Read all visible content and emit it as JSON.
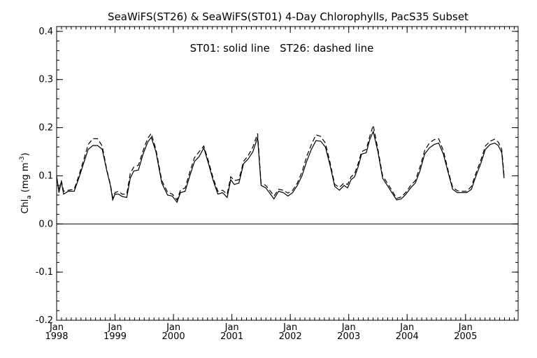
{
  "chart_data": {
    "type": "line",
    "title": "SeaWiFS(ST26) & SeaWiFS(ST01) 4-Day Chlorophylls, PacS35 Subset",
    "annotation": "ST01: solid line   ST26: dashed line",
    "ylabel": "Chl",
    "ylabel_subscript": "a",
    "ylabel_units": "(mg m",
    "ylabel_units_sup": "-3",
    "ylabel_units_close": ")",
    "ylim": [
      -0.2,
      0.41
    ],
    "yticks": [
      -0.2,
      -0.1,
      0.0,
      0.1,
      0.2,
      0.3,
      0.4
    ],
    "ytick_labels": [
      "-0.2",
      "-0.1",
      "0.0",
      "0.1",
      "0.2",
      "0.3",
      "0.4"
    ],
    "xlim": [
      1998.0,
      2005.9
    ],
    "xticks": [
      {
        "x": 1998,
        "month": "Jan",
        "year": "1998"
      },
      {
        "x": 1999,
        "month": "Jan",
        "year": "1999"
      },
      {
        "x": 2000,
        "month": "Jan",
        "year": "2000"
      },
      {
        "x": 2001,
        "month": "Jan",
        "year": "2001"
      },
      {
        "x": 2002,
        "month": "Jan",
        "year": "2002"
      },
      {
        "x": 2003,
        "month": "Jan",
        "year": "2003"
      },
      {
        "x": 2004,
        "month": "Jan",
        "year": "2004"
      },
      {
        "x": 2005,
        "month": "Jan",
        "year": "2005"
      }
    ],
    "zero_line": 0.0,
    "series": [
      {
        "name": "ST01",
        "style": "solid",
        "color": "#000000",
        "points": [
          [
            1998.0,
            0.1
          ],
          [
            1998.04,
            0.065
          ],
          [
            1998.08,
            0.088
          ],
          [
            1998.12,
            0.062
          ],
          [
            1998.2,
            0.068
          ],
          [
            1998.3,
            0.068
          ],
          [
            1998.38,
            0.095
          ],
          [
            1998.46,
            0.125
          ],
          [
            1998.54,
            0.155
          ],
          [
            1998.62,
            0.163
          ],
          [
            1998.7,
            0.163
          ],
          [
            1998.78,
            0.155
          ],
          [
            1998.86,
            0.11
          ],
          [
            1998.92,
            0.08
          ],
          [
            1998.96,
            0.05
          ],
          [
            1999.0,
            0.062
          ],
          [
            1999.06,
            0.062
          ],
          [
            1999.12,
            0.057
          ],
          [
            1999.2,
            0.055
          ],
          [
            1999.26,
            0.095
          ],
          [
            1999.32,
            0.11
          ],
          [
            1999.4,
            0.112
          ],
          [
            1999.48,
            0.145
          ],
          [
            1999.56,
            0.17
          ],
          [
            1999.62,
            0.18
          ],
          [
            1999.7,
            0.15
          ],
          [
            1999.8,
            0.085
          ],
          [
            1999.9,
            0.06
          ],
          [
            1999.98,
            0.058
          ],
          [
            2000.06,
            0.045
          ],
          [
            2000.12,
            0.065
          ],
          [
            2000.2,
            0.068
          ],
          [
            2000.28,
            0.1
          ],
          [
            2000.36,
            0.13
          ],
          [
            2000.44,
            0.14
          ],
          [
            2000.52,
            0.158
          ],
          [
            2000.6,
            0.125
          ],
          [
            2000.68,
            0.09
          ],
          [
            2000.76,
            0.062
          ],
          [
            2000.84,
            0.065
          ],
          [
            2000.92,
            0.055
          ],
          [
            2000.98,
            0.092
          ],
          [
            2001.04,
            0.082
          ],
          [
            2001.12,
            0.085
          ],
          [
            2001.2,
            0.125
          ],
          [
            2001.28,
            0.135
          ],
          [
            2001.36,
            0.15
          ],
          [
            2001.44,
            0.18
          ],
          [
            2001.5,
            0.08
          ],
          [
            2001.58,
            0.075
          ],
          [
            2001.66,
            0.062
          ],
          [
            2001.72,
            0.052
          ],
          [
            2001.8,
            0.068
          ],
          [
            2001.88,
            0.065
          ],
          [
            2001.96,
            0.058
          ],
          [
            2002.04,
            0.065
          ],
          [
            2002.12,
            0.08
          ],
          [
            2002.2,
            0.1
          ],
          [
            2002.28,
            0.13
          ],
          [
            2002.36,
            0.155
          ],
          [
            2002.44,
            0.173
          ],
          [
            2002.52,
            0.172
          ],
          [
            2002.6,
            0.16
          ],
          [
            2002.68,
            0.122
          ],
          [
            2002.76,
            0.078
          ],
          [
            2002.84,
            0.07
          ],
          [
            2002.92,
            0.08
          ],
          [
            2002.98,
            0.075
          ],
          [
            2003.04,
            0.092
          ],
          [
            2003.1,
            0.098
          ],
          [
            2003.16,
            0.118
          ],
          [
            2003.22,
            0.145
          ],
          [
            2003.3,
            0.148
          ],
          [
            2003.36,
            0.175
          ],
          [
            2003.42,
            0.192
          ],
          [
            2003.5,
            0.15
          ],
          [
            2003.58,
            0.095
          ],
          [
            2003.66,
            0.08
          ],
          [
            2003.74,
            0.065
          ],
          [
            2003.82,
            0.05
          ],
          [
            2003.9,
            0.052
          ],
          [
            2003.98,
            0.062
          ],
          [
            2004.06,
            0.075
          ],
          [
            2004.14,
            0.085
          ],
          [
            2004.22,
            0.11
          ],
          [
            2004.3,
            0.145
          ],
          [
            2004.38,
            0.158
          ],
          [
            2004.46,
            0.165
          ],
          [
            2004.54,
            0.168
          ],
          [
            2004.62,
            0.145
          ],
          [
            2004.7,
            0.108
          ],
          [
            2004.78,
            0.072
          ],
          [
            2004.86,
            0.065
          ],
          [
            2004.94,
            0.065
          ],
          [
            2005.02,
            0.065
          ],
          [
            2005.1,
            0.072
          ],
          [
            2005.18,
            0.1
          ],
          [
            2005.26,
            0.125
          ],
          [
            2005.34,
            0.155
          ],
          [
            2005.42,
            0.165
          ],
          [
            2005.5,
            0.168
          ],
          [
            2005.56,
            0.163
          ],
          [
            2005.62,
            0.148
          ],
          [
            2005.66,
            0.095
          ]
        ]
      },
      {
        "name": "ST26",
        "style": "dashed",
        "color": "#000000",
        "points": [
          [
            1998.0,
            0.098
          ],
          [
            1998.04,
            0.07
          ],
          [
            1998.08,
            0.09
          ],
          [
            1998.12,
            0.068
          ],
          [
            1998.2,
            0.07
          ],
          [
            1998.3,
            0.072
          ],
          [
            1998.38,
            0.1
          ],
          [
            1998.46,
            0.132
          ],
          [
            1998.54,
            0.165
          ],
          [
            1998.62,
            0.177
          ],
          [
            1998.7,
            0.177
          ],
          [
            1998.78,
            0.162
          ],
          [
            1998.86,
            0.112
          ],
          [
            1998.92,
            0.082
          ],
          [
            1998.96,
            0.055
          ],
          [
            1999.0,
            0.065
          ],
          [
            1999.06,
            0.068
          ],
          [
            1999.12,
            0.062
          ],
          [
            1999.2,
            0.062
          ],
          [
            1999.26,
            0.105
          ],
          [
            1999.32,
            0.118
          ],
          [
            1999.4,
            0.122
          ],
          [
            1999.48,
            0.152
          ],
          [
            1999.56,
            0.178
          ],
          [
            1999.62,
            0.188
          ],
          [
            1999.7,
            0.155
          ],
          [
            1999.8,
            0.09
          ],
          [
            1999.9,
            0.066
          ],
          [
            1999.98,
            0.062
          ],
          [
            2000.06,
            0.05
          ],
          [
            2000.12,
            0.07
          ],
          [
            2000.2,
            0.075
          ],
          [
            2000.28,
            0.108
          ],
          [
            2000.36,
            0.138
          ],
          [
            2000.44,
            0.15
          ],
          [
            2000.52,
            0.162
          ],
          [
            2000.6,
            0.13
          ],
          [
            2000.68,
            0.095
          ],
          [
            2000.76,
            0.068
          ],
          [
            2000.84,
            0.07
          ],
          [
            2000.92,
            0.062
          ],
          [
            2000.98,
            0.098
          ],
          [
            2001.04,
            0.09
          ],
          [
            2001.12,
            0.092
          ],
          [
            2001.2,
            0.13
          ],
          [
            2001.28,
            0.142
          ],
          [
            2001.36,
            0.16
          ],
          [
            2001.44,
            0.188
          ],
          [
            2001.5,
            0.085
          ],
          [
            2001.58,
            0.08
          ],
          [
            2001.66,
            0.068
          ],
          [
            2001.72,
            0.058
          ],
          [
            2001.8,
            0.072
          ],
          [
            2001.88,
            0.07
          ],
          [
            2001.96,
            0.064
          ],
          [
            2002.04,
            0.07
          ],
          [
            2002.12,
            0.085
          ],
          [
            2002.2,
            0.108
          ],
          [
            2002.28,
            0.14
          ],
          [
            2002.36,
            0.165
          ],
          [
            2002.44,
            0.185
          ],
          [
            2002.52,
            0.182
          ],
          [
            2002.6,
            0.168
          ],
          [
            2002.68,
            0.128
          ],
          [
            2002.76,
            0.082
          ],
          [
            2002.84,
            0.076
          ],
          [
            2002.92,
            0.085
          ],
          [
            2002.98,
            0.082
          ],
          [
            2003.04,
            0.098
          ],
          [
            2003.1,
            0.104
          ],
          [
            2003.16,
            0.125
          ],
          [
            2003.22,
            0.15
          ],
          [
            2003.3,
            0.155
          ],
          [
            2003.36,
            0.182
          ],
          [
            2003.42,
            0.205
          ],
          [
            2003.5,
            0.155
          ],
          [
            2003.58,
            0.1
          ],
          [
            2003.66,
            0.085
          ],
          [
            2003.74,
            0.07
          ],
          [
            2003.82,
            0.053
          ],
          [
            2003.9,
            0.056
          ],
          [
            2003.98,
            0.066
          ],
          [
            2004.06,
            0.08
          ],
          [
            2004.14,
            0.09
          ],
          [
            2004.22,
            0.118
          ],
          [
            2004.3,
            0.152
          ],
          [
            2004.38,
            0.168
          ],
          [
            2004.46,
            0.175
          ],
          [
            2004.54,
            0.177
          ],
          [
            2004.62,
            0.152
          ],
          [
            2004.7,
            0.112
          ],
          [
            2004.78,
            0.076
          ],
          [
            2004.86,
            0.069
          ],
          [
            2004.94,
            0.068
          ],
          [
            2005.02,
            0.068
          ],
          [
            2005.1,
            0.078
          ],
          [
            2005.18,
            0.106
          ],
          [
            2005.26,
            0.132
          ],
          [
            2005.34,
            0.162
          ],
          [
            2005.42,
            0.172
          ],
          [
            2005.5,
            0.176
          ],
          [
            2005.56,
            0.17
          ],
          [
            2005.62,
            0.155
          ],
          [
            2005.66,
            0.1
          ]
        ]
      }
    ]
  }
}
